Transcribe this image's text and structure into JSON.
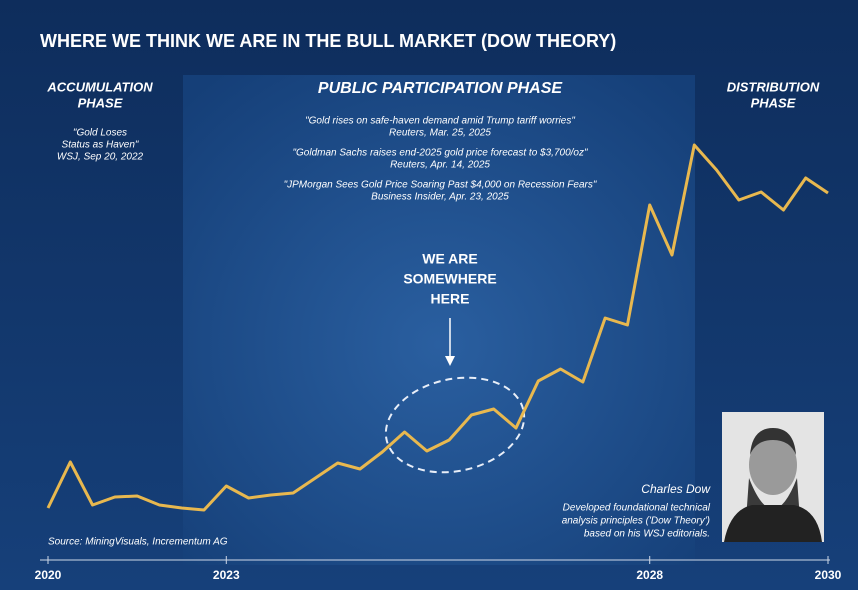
{
  "chart_data": {
    "type": "line",
    "title": "WHERE WE THINK WE ARE IN THE BULL MARKET (DOW THEORY)",
    "phases": [
      [
        "ACCUMULATION",
        "PHASE"
      ],
      [
        "PUBLIC PARTICIPATION PHASE"
      ],
      [
        "DISTRIBUTION",
        "PHASE"
      ]
    ],
    "accumulation_quote": [
      "\"Gold Loses",
      "Status as Haven\"",
      "WSJ, Sep 20, 2022"
    ],
    "public_quotes": [
      [
        "\"Gold rises on safe-haven demand amid Trump tariff worries\"",
        "Reuters, Mar. 25, 2025"
      ],
      [
        "\"Goldman Sachs raises end-2025 gold price forecast to $3,700/oz\"",
        "Reuters, Apr. 14, 2025"
      ],
      [
        "\"JPMorgan Sees Gold Price Soaring Past $4,000 on Recession Fears\"",
        "Business Insider, Apr. 23, 2025"
      ]
    ],
    "marker_text": [
      "WE ARE",
      "SOMEWHERE",
      "HERE"
    ],
    "person": {
      "name": "Charles Dow",
      "description": [
        "Developed foundational technical",
        "analysis principles ('Dow Theory')",
        "based on his WSJ editorials."
      ]
    },
    "source": "Source: MiningVisuals, Incrementum AG",
    "categories": [
      "2020",
      null,
      null,
      null,
      null,
      null,
      null,
      null,
      "2023",
      null,
      null,
      null,
      null,
      null,
      null,
      null,
      null,
      null,
      null,
      null,
      null,
      null,
      null,
      null,
      null,
      null,
      null,
      "2028",
      null,
      null,
      null,
      null,
      null,
      null,
      null,
      "2030"
    ],
    "values": [
      13,
      24.5,
      13.75,
      15.75,
      16,
      13.75,
      13,
      12.5,
      18.5,
      15.5,
      16.25,
      16.75,
      20.5,
      24.25,
      22.75,
      27,
      32,
      27.25,
      30,
      36.25,
      37.75,
      33,
      44.75,
      47.75,
      44.5,
      60.5,
      58.75,
      88.75,
      76.25,
      103.75,
      97.5,
      90,
      92,
      87.5,
      95.5,
      91.75
    ],
    "color": "#e8b84f",
    "ylim": [
      0,
      110
    ]
  }
}
